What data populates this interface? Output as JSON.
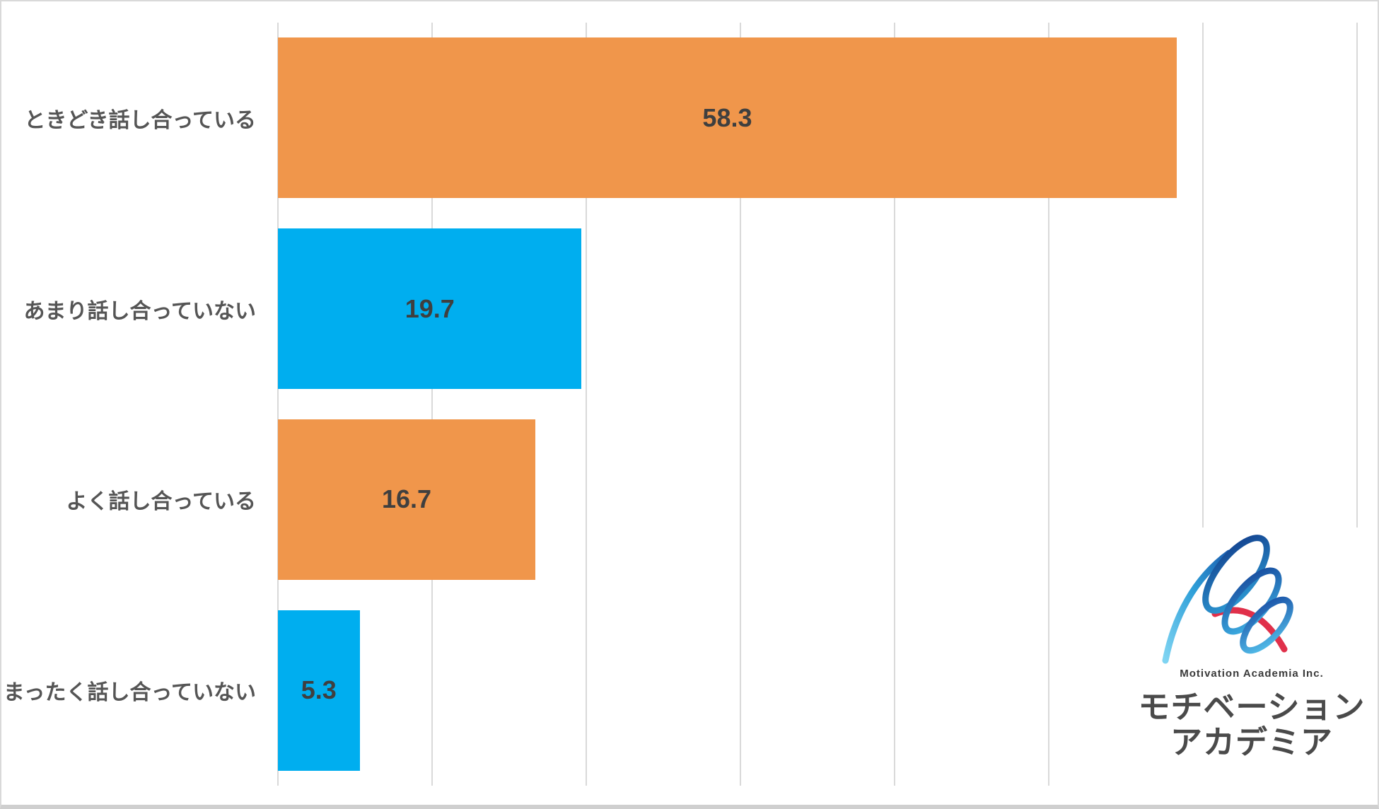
{
  "chart_data": {
    "type": "bar",
    "orientation": "horizontal",
    "title": "",
    "xlabel": "",
    "ylabel": "",
    "categories": [
      "ときどき話し合っている",
      "あまり話し合っていない",
      "よく話し合っている",
      "まったく話し合っていない"
    ],
    "values": [
      58.3,
      19.7,
      16.7,
      5.3
    ],
    "value_labels": [
      "58.3",
      "19.7",
      "16.7",
      "5.3"
    ],
    "bar_colors": [
      "#F0964B",
      "#00AEEF",
      "#F0964B",
      "#00AEEF"
    ],
    "xlim": [
      0,
      70
    ],
    "gridline_interval": 10,
    "grid": "vertical gridlines only, no axis tick labels, no legend",
    "legend_position": "none"
  },
  "logo": {
    "company_en": "Motivation Academia Inc.",
    "company_jp_line1": "モチベーション",
    "company_jp_line2": "アカデミア"
  },
  "colors": {
    "bar_orange": "#F0964B",
    "bar_blue": "#00AEEF",
    "gridline": "#D9D9D9",
    "value_text": "#3F3F3F",
    "category_text": "#555555",
    "page_border": "#D9D9D9",
    "logo_text": "#4A4A4A",
    "logo_blue_light": "#3FBCEE",
    "logo_blue_dark": "#17418F",
    "logo_red": "#E0304A"
  }
}
